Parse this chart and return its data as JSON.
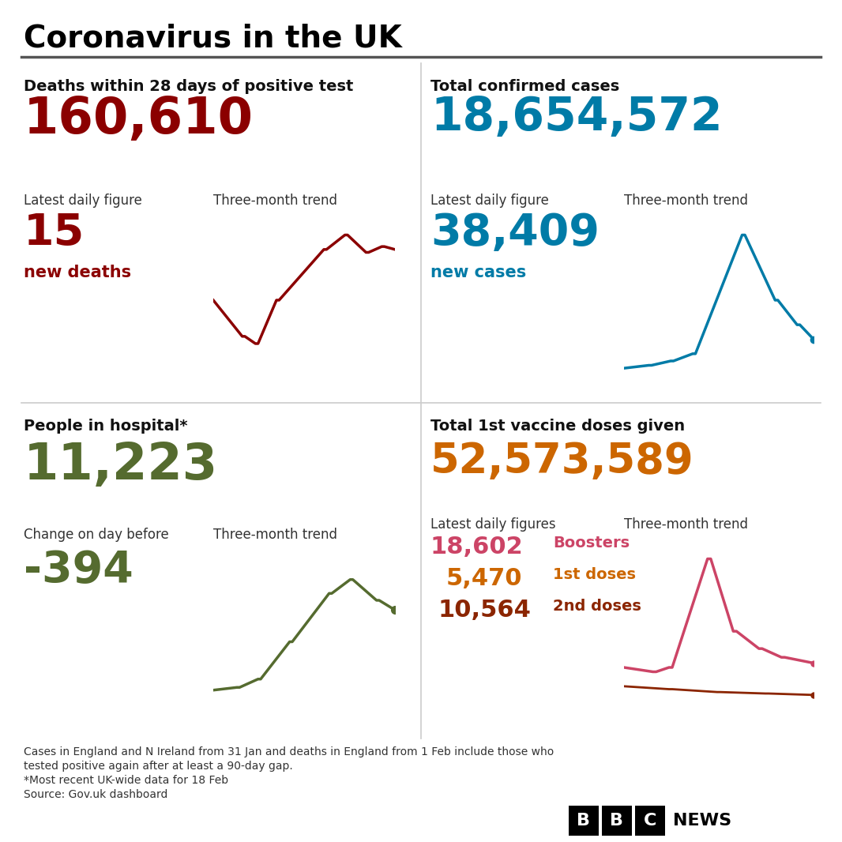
{
  "title": "Coronavirus in the UK",
  "bg_color": "#ffffff",
  "title_color": "#000000",
  "q1_header": "Deaths within 28 days of positive test",
  "q1_total": "160,610",
  "q1_total_color": "#8B0000",
  "q1_daily_label": "Latest daily figure",
  "q1_daily_value": "15",
  "q1_daily_color": "#8B0000",
  "q1_daily_sublabel": "new deaths",
  "q1_trend_label": "Three-month trend",
  "q1_trend_color": "#8B0000",
  "q2_header": "Total confirmed cases",
  "q2_total": "18,654,572",
  "q2_total_color": "#007BA7",
  "q2_daily_label": "Latest daily figure",
  "q2_daily_value": "38,409",
  "q2_daily_color": "#007BA7",
  "q2_daily_sublabel": "new cases",
  "q2_trend_label": "Three-month trend",
  "q2_trend_color": "#007BA7",
  "q3_header": "People in hospital*",
  "q3_total": "11,223",
  "q3_total_color": "#556B2F",
  "q3_daily_label": "Change on day before",
  "q3_daily_value": "-394",
  "q3_daily_color": "#556B2F",
  "q3_trend_label": "Three-month trend",
  "q3_trend_color": "#556B2F",
  "q4_header": "Total 1st vaccine doses given",
  "q4_total": "52,573,589",
  "q4_total_color": "#CC6600",
  "q4_daily_label": "Latest daily figures",
  "q4_trend_label": "Three-month trend",
  "q4_booster_value": "18,602",
  "q4_booster_label": "Boosters",
  "q4_booster_color": "#CC4466",
  "q4_first_value": "5,470",
  "q4_first_label": "1st doses",
  "q4_first_color": "#CC6600",
  "q4_second_value": "10,564",
  "q4_second_label": "2nd doses",
  "q4_second_color": "#8B2500",
  "footer_line1": "Cases in England and N Ireland from 31 Jan and deaths in England from 1 Feb include those who",
  "footer_line2": "tested positive again after at least a 90-day gap.",
  "footer_line3": "*Most recent UK-wide data for 18 Feb",
  "footer_line4": "Source: Gov.uk dashboard",
  "footer_color": "#333333"
}
